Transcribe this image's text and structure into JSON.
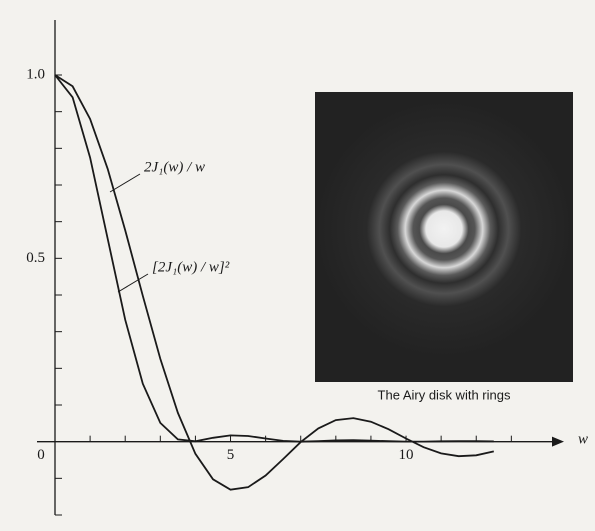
{
  "chart_data": {
    "type": "line",
    "x": [
      0,
      0.5,
      1,
      1.5,
      2,
      2.5,
      3,
      3.5,
      4,
      4.5,
      5,
      5.5,
      6,
      6.5,
      7,
      7.5,
      8,
      8.5,
      9,
      9.5,
      10,
      10.5,
      11,
      11.5,
      12,
      12.5
    ],
    "series": [
      {
        "name": "2J₁(w) / w",
        "color": "#1a1a1a",
        "values": [
          1,
          0.9691,
          0.8801,
          0.7439,
          0.5767,
          0.3977,
          0.2261,
          0.0785,
          -0.033,
          -0.1027,
          -0.131,
          -0.1241,
          -0.0922,
          -0.0473,
          -0.0013,
          0.0361,
          0.0587,
          0.0643,
          0.0545,
          0.034,
          0.0087,
          -0.015,
          -0.0321,
          -0.0397,
          -0.0372,
          -0.0265
        ]
      },
      {
        "name": "[2J₁(w) / w]²",
        "color": "#1a1a1a",
        "values": [
          1,
          0.9392,
          0.7746,
          0.5534,
          0.3326,
          0.1582,
          0.0511,
          0.0062,
          0.0011,
          0.0105,
          0.0172,
          0.0154,
          0.0085,
          0.0022,
          0,
          0.0013,
          0.0034,
          0.0041,
          0.003,
          0.0012,
          0.0001,
          0.0002,
          0.001,
          0.0016,
          0.0014,
          0.0007
        ]
      }
    ],
    "x_label": "w",
    "xlim": [
      0,
      14.5
    ],
    "ylim": [
      -0.2,
      1.15
    ],
    "xticks": [
      0,
      5,
      10
    ],
    "xminor_ticks": [
      1,
      2,
      3,
      4,
      6,
      7,
      8,
      9,
      11,
      12,
      13
    ],
    "yticks": [
      0.5,
      {
        "value": 1,
        "label": "1.0"
      }
    ],
    "yminor_ticks": [
      -0.2,
      -0.1,
      0.1,
      0.2,
      0.3,
      0.4,
      0.6,
      0.7,
      0.8,
      0.9
    ],
    "inset_caption": "The Airy disk with rings"
  }
}
